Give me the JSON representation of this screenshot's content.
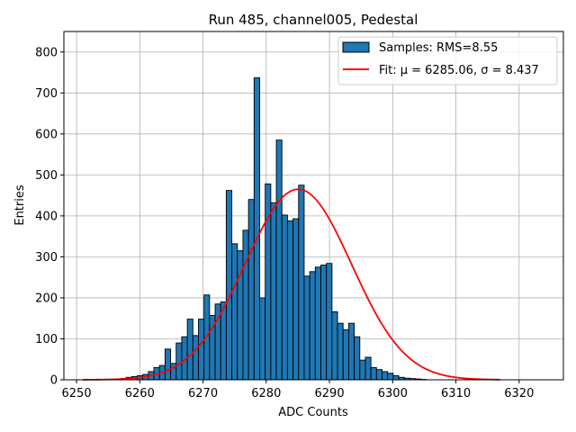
{
  "chart_data": {
    "type": "bar",
    "title": "Run 485, channel005, Pedestal",
    "xlabel": "ADC Counts",
    "ylabel": "Entries",
    "xlim": [
      6248,
      6327
    ],
    "ylim": [
      0,
      850
    ],
    "xticks": [
      6250,
      6260,
      6270,
      6280,
      6290,
      6300,
      6310,
      6320
    ],
    "yticks": [
      0,
      100,
      200,
      300,
      400,
      500,
      600,
      700,
      800
    ],
    "grid": true,
    "legend_position": "top-right",
    "histogram": {
      "name": "Samples: RMS=8.55",
      "color": "#1f77b4",
      "edge_color": "#000000",
      "bin_start": 6255.2,
      "bin_width": 0.88,
      "counts": [
        1,
        2,
        3,
        6,
        8,
        10,
        13,
        20,
        30,
        35,
        75,
        40,
        90,
        105,
        148,
        108,
        148,
        207,
        157,
        185,
        190,
        462,
        332,
        315,
        365,
        440,
        737,
        200,
        478,
        432,
        585,
        402,
        388,
        393,
        475,
        253,
        264,
        275,
        280,
        284,
        166,
        138,
        122,
        138,
        105,
        48,
        55,
        30,
        25,
        20,
        16,
        10,
        6,
        4,
        3,
        2,
        1
      ]
    },
    "fit": {
      "name": "Fit: μ = 6285.06, σ = 8.437",
      "color": "#ff0000",
      "mu": 6285.06,
      "sigma": 8.437,
      "amplitude": 465,
      "x_range": [
        6251,
        6317
      ]
    }
  }
}
